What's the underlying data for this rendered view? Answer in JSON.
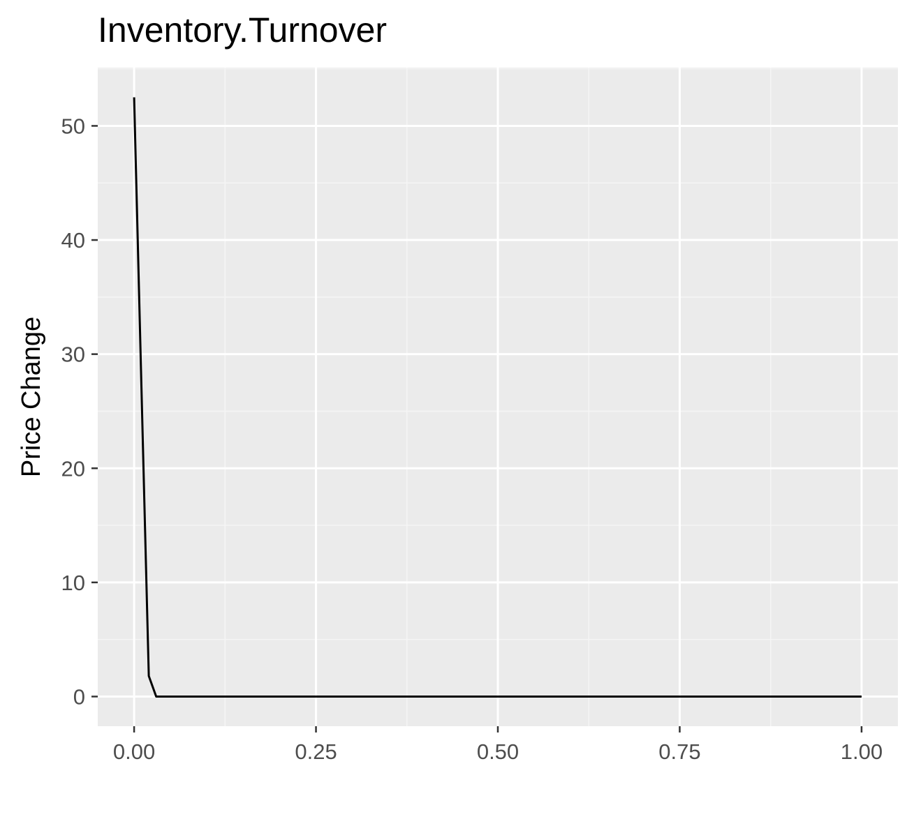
{
  "chart_data": {
    "type": "line",
    "title": "Inventory.Turnover",
    "xlabel": "",
    "ylabel": "Price Change",
    "xlim": [
      -0.05,
      1.05
    ],
    "ylim": [
      -2.6,
      55.1
    ],
    "x_ticks": [
      {
        "value": 0.0,
        "label": "0.00"
      },
      {
        "value": 0.25,
        "label": "0.25"
      },
      {
        "value": 0.5,
        "label": "0.50"
      },
      {
        "value": 0.75,
        "label": "0.75"
      },
      {
        "value": 1.0,
        "label": "1.00"
      }
    ],
    "y_ticks": [
      {
        "value": 0,
        "label": "0"
      },
      {
        "value": 10,
        "label": "10"
      },
      {
        "value": 20,
        "label": "20"
      },
      {
        "value": 30,
        "label": "30"
      },
      {
        "value": 40,
        "label": "40"
      },
      {
        "value": 50,
        "label": "50"
      }
    ],
    "grid": true,
    "series": [
      {
        "name": "Price Change",
        "x": [
          0.0,
          0.0101,
          0.0202,
          0.0303,
          0.0404,
          0.1,
          0.25,
          0.5,
          0.75,
          1.0
        ],
        "y": [
          52.5,
          27.0,
          1.8,
          0.0,
          0.0,
          0.0,
          0.0,
          0.0,
          0.0,
          0.0
        ]
      }
    ],
    "colors": {
      "panel_background": "#ebebeb",
      "grid_major": "#ffffff",
      "grid_minor": "#f5f5f5",
      "line": "#000000",
      "tick": "#333333"
    }
  }
}
